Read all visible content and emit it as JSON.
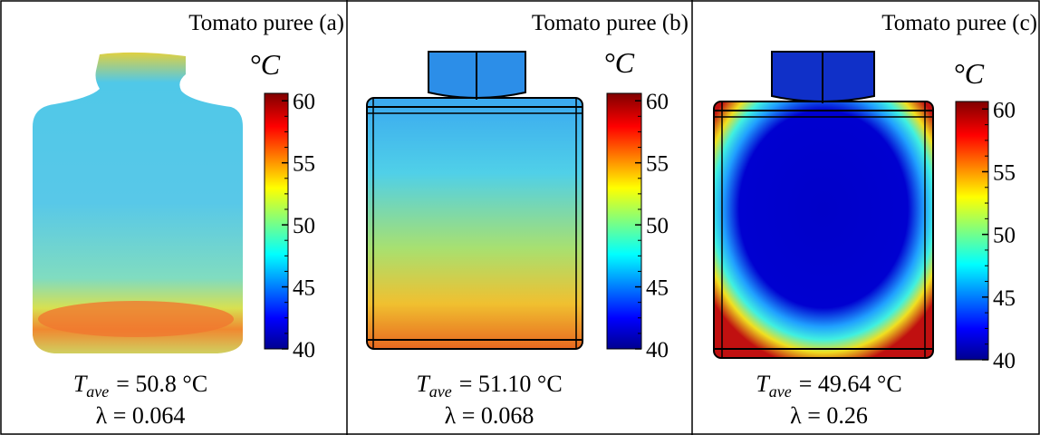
{
  "panels": [
    {
      "title": "Tomato puree (a)",
      "unit": "°C",
      "ticks": [
        60,
        55,
        50,
        45,
        40
      ],
      "range": [
        40,
        60.6
      ],
      "tave_symbol": "T",
      "tave_sub": "ave",
      "tave_value": "= 50.8 °C",
      "lambda": "λ = 0.064"
    },
    {
      "title": "Tomato puree (b)",
      "unit": "°C",
      "ticks": [
        60,
        55,
        50,
        45,
        40
      ],
      "range": [
        40,
        60.6
      ],
      "tave_symbol": "T",
      "tave_sub": "ave",
      "tave_value": "= 51.10 °C",
      "lambda": "λ = 0.068"
    },
    {
      "title": "Tomato puree (c)",
      "unit": "°C",
      "ticks": [
        60,
        55,
        50,
        45,
        40
      ],
      "range": [
        40,
        60.6
      ],
      "tave_symbol": "T",
      "tave_sub": "ave",
      "tave_value": "= 49.64 °C",
      "lambda": "λ = 0.26"
    }
  ]
}
